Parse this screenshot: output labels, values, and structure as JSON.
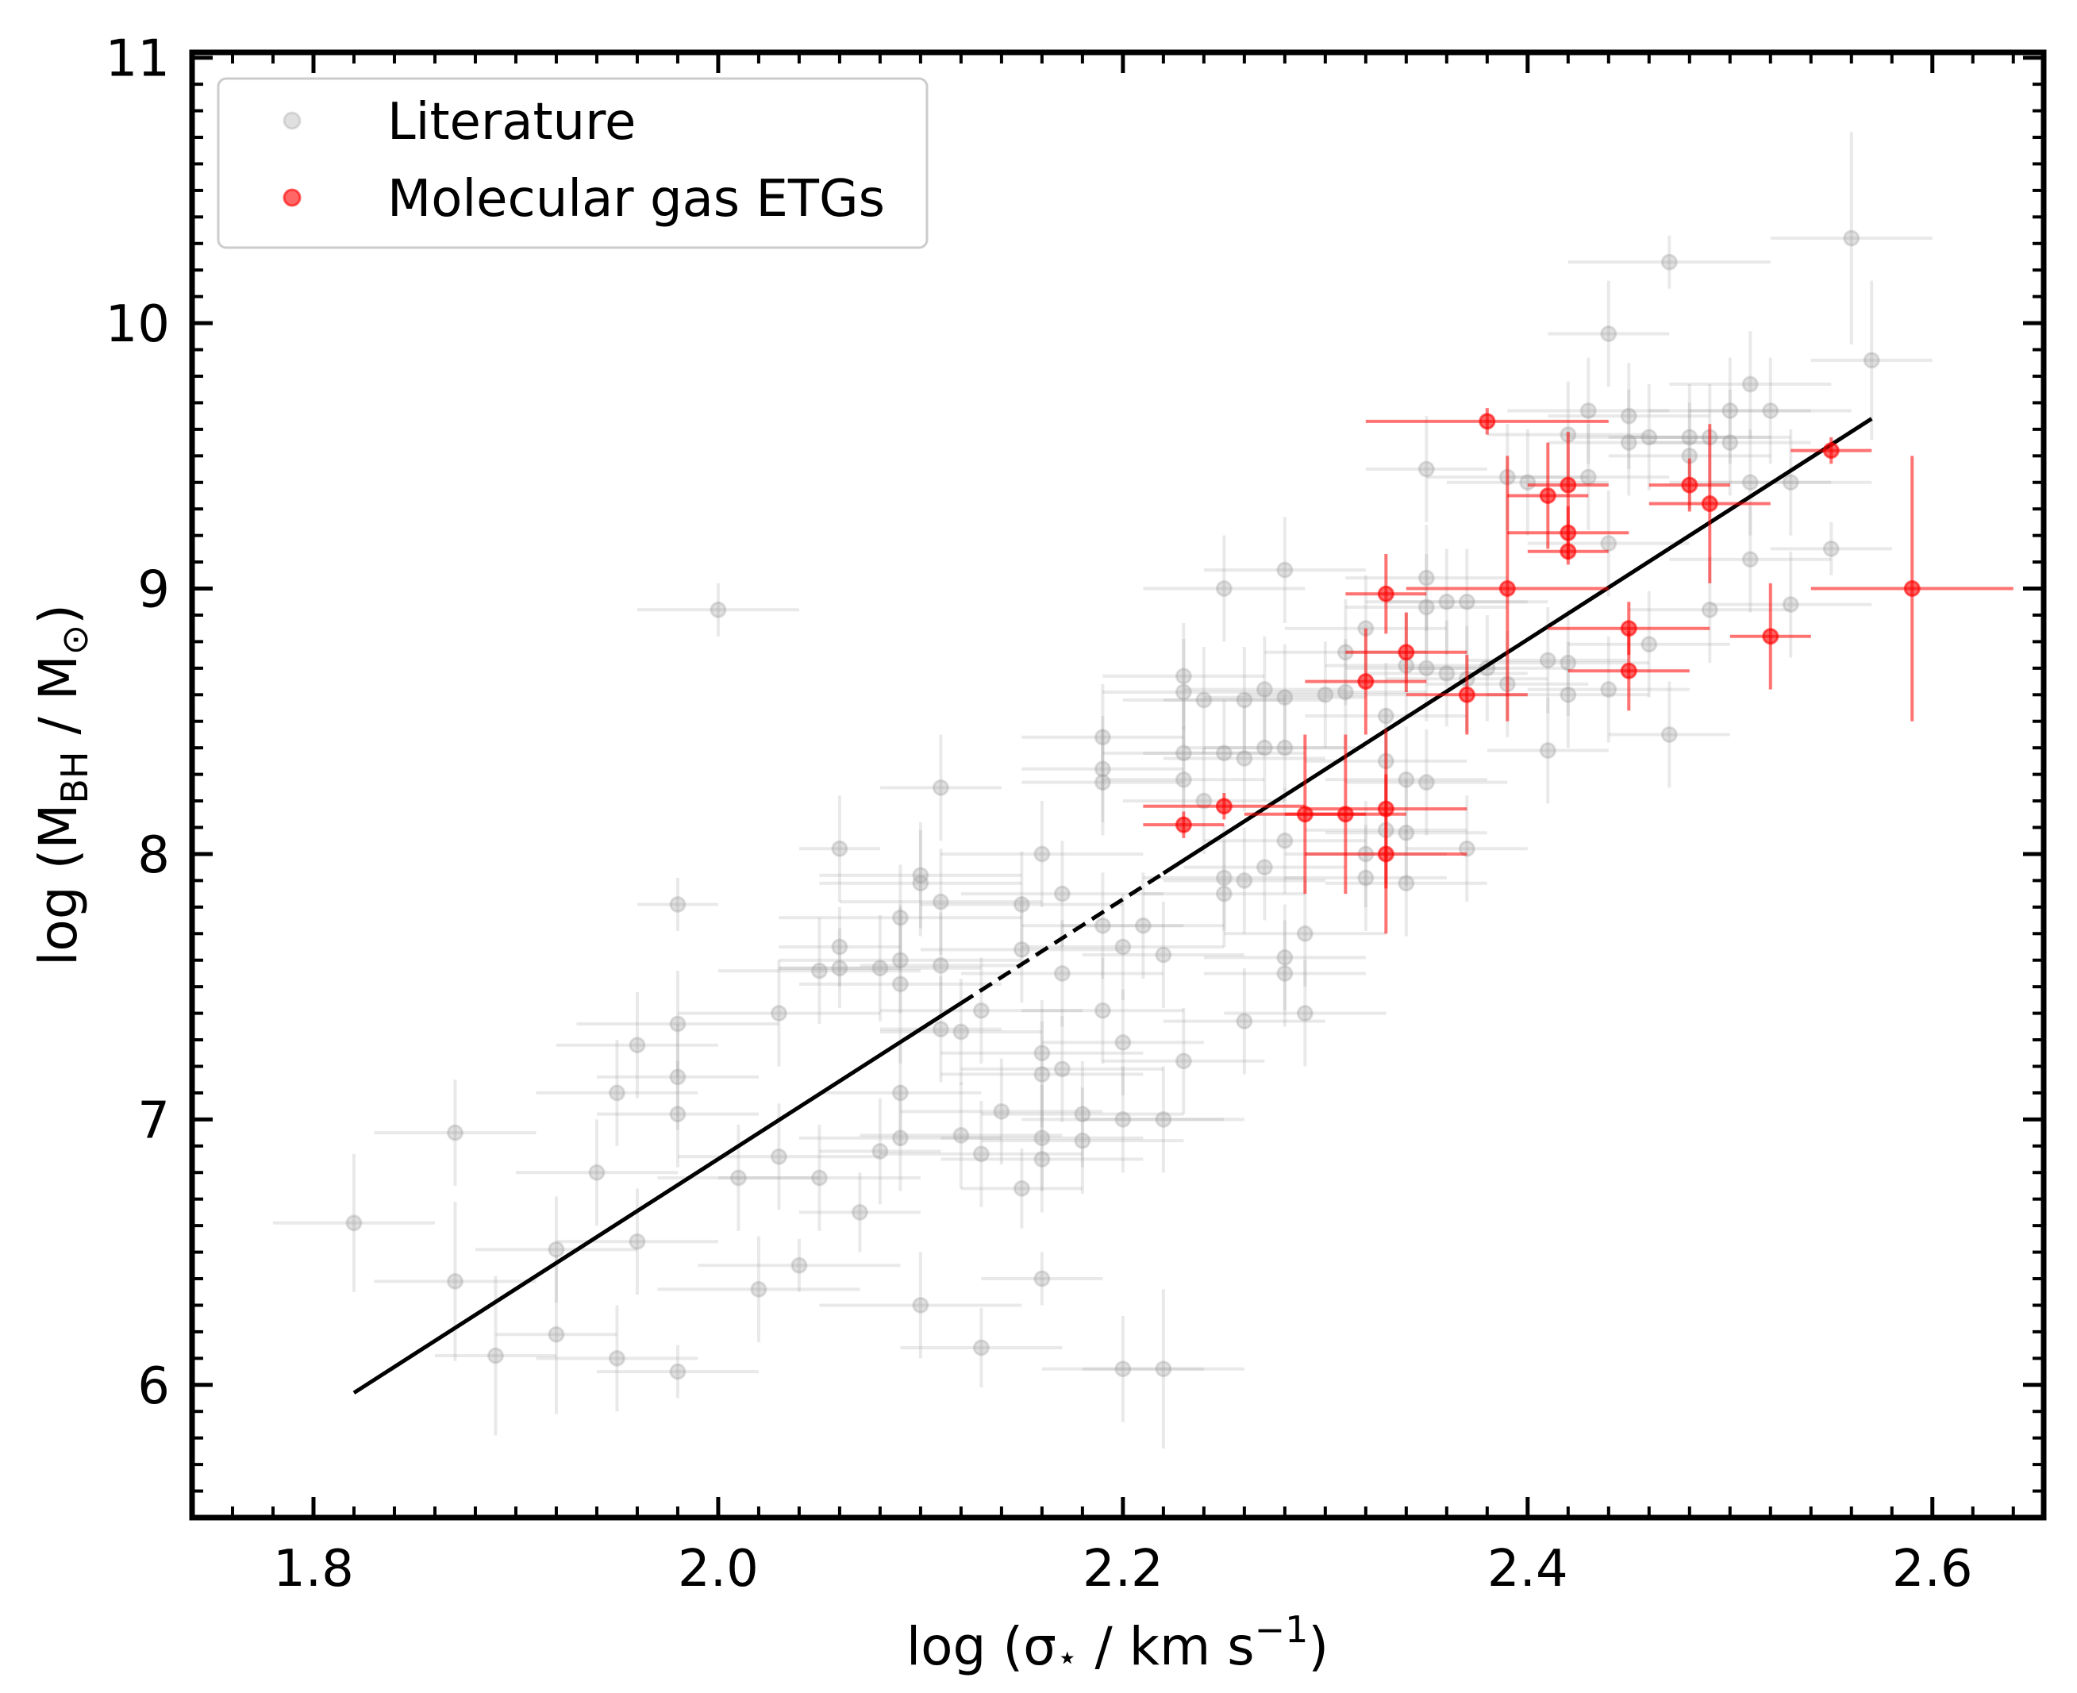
{
  "chart_data": {
    "type": "scatter",
    "xlabel": "log (σ⋆ / km s⁻¹)",
    "ylabel": "log (M_BH / M_⊙)",
    "xlabel_parts": {
      "main": "log (σ",
      "star": "⋆",
      "mid": " / km s",
      "sup": "−1",
      "end": ")"
    },
    "ylabel_parts": {
      "main": "log (M",
      "sub1": "BH",
      "mid": " / M",
      "sub2": "⊙",
      "end": ")"
    },
    "xlim": [
      1.74,
      2.655
    ],
    "ylim": [
      5.5,
      11.02
    ],
    "xticks": [
      "1.8",
      "2.0",
      "2.2",
      "2.4",
      "2.6"
    ],
    "yticks": [
      "6",
      "7",
      "8",
      "9",
      "10",
      "11"
    ],
    "legend_position": "top-left",
    "colors": {
      "literature": "#999999",
      "molecular": "#ff0000",
      "fit": "#000000"
    },
    "fit_line": {
      "x": [
        1.82,
        2.57
      ],
      "y": [
        5.97,
        9.64
      ],
      "dashed_range": [
        2.12,
        2.22
      ]
    },
    "series": [
      {
        "name": "Literature",
        "points": [
          [
            1.82,
            6.61,
            0.04,
            0.26
          ],
          [
            1.87,
            6.95,
            0.04,
            0.2
          ],
          [
            1.87,
            6.39,
            0.04,
            0.3
          ],
          [
            1.89,
            6.11,
            0.03,
            0.3
          ],
          [
            1.92,
            6.51,
            0.04,
            0.2
          ],
          [
            1.92,
            6.19,
            0.03,
            0.3
          ],
          [
            1.94,
            6.8,
            0.04,
            0.2
          ],
          [
            1.95,
            7.1,
            0.04,
            0.2
          ],
          [
            1.95,
            6.1,
            0.04,
            0.2
          ],
          [
            1.96,
            7.28,
            0.04,
            0.2
          ],
          [
            1.96,
            6.54,
            0.04,
            0.2
          ],
          [
            1.98,
            7.36,
            0.05,
            0.2
          ],
          [
            1.98,
            7.16,
            0.04,
            0.2
          ],
          [
            1.98,
            7.02,
            0.04,
            0.2
          ],
          [
            1.98,
            7.81,
            0.02,
            0.1
          ],
          [
            1.98,
            6.05,
            0.04,
            0.1
          ],
          [
            2.0,
            8.92,
            0.04,
            0.1
          ],
          [
            2.01,
            6.78,
            0.04,
            0.2
          ],
          [
            2.02,
            6.36,
            0.05,
            0.2
          ],
          [
            2.03,
            7.4,
            0.05,
            0.2
          ],
          [
            2.03,
            6.86,
            0.05,
            0.2
          ],
          [
            2.04,
            6.45,
            0.05,
            0.1
          ],
          [
            2.05,
            7.56,
            0.05,
            0.2
          ],
          [
            2.05,
            6.78,
            0.05,
            0.2
          ],
          [
            2.06,
            8.02,
            0.02,
            0.2
          ],
          [
            2.06,
            7.65,
            0.03,
            0.15
          ],
          [
            2.06,
            7.57,
            0.03,
            0.15
          ],
          [
            2.07,
            6.65,
            0.03,
            0.15
          ],
          [
            2.08,
            7.57,
            0.05,
            0.2
          ],
          [
            2.08,
            6.88,
            0.03,
            0.2
          ],
          [
            2.09,
            7.76,
            0.06,
            0.2
          ],
          [
            2.09,
            7.6,
            0.06,
            0.2
          ],
          [
            2.09,
            7.51,
            0.05,
            0.3
          ],
          [
            2.09,
            7.1,
            0.04,
            0.2
          ],
          [
            2.09,
            6.93,
            0.05,
            0.2
          ],
          [
            2.1,
            7.92,
            0.05,
            0.2
          ],
          [
            2.1,
            7.89,
            0.05,
            0.2
          ],
          [
            2.1,
            6.3,
            0.05,
            0.2
          ],
          [
            2.11,
            8.25,
            0.03,
            0.2
          ],
          [
            2.11,
            7.82,
            0.05,
            0.2
          ],
          [
            2.11,
            7.58,
            0.04,
            0.2
          ],
          [
            2.11,
            7.34,
            0.03,
            0.2
          ],
          [
            2.12,
            7.33,
            0.04,
            0.2
          ],
          [
            2.12,
            6.94,
            0.05,
            0.2
          ],
          [
            2.13,
            7.41,
            0.05,
            0.2
          ],
          [
            2.13,
            6.87,
            0.05,
            0.2
          ],
          [
            2.13,
            6.14,
            0.04,
            0.15
          ],
          [
            2.14,
            7.03,
            0.05,
            0.2
          ],
          [
            2.15,
            7.81,
            0.05,
            0.2
          ],
          [
            2.15,
            7.64,
            0.05,
            0.2
          ],
          [
            2.15,
            6.74,
            0.03,
            0.15
          ],
          [
            2.16,
            8.0,
            0.05,
            0.2
          ],
          [
            2.16,
            7.25,
            0.05,
            0.2
          ],
          [
            2.16,
            7.17,
            0.05,
            0.2
          ],
          [
            2.16,
            6.93,
            0.05,
            0.2
          ],
          [
            2.16,
            6.85,
            0.05,
            0.2
          ],
          [
            2.16,
            6.4,
            0.03,
            0.1
          ],
          [
            2.17,
            7.85,
            0.05,
            0.2
          ],
          [
            2.17,
            7.55,
            0.05,
            0.2
          ],
          [
            2.17,
            7.19,
            0.05,
            0.2
          ],
          [
            2.18,
            7.02,
            0.05,
            0.2
          ],
          [
            2.18,
            6.92,
            0.05,
            0.2
          ],
          [
            2.19,
            8.44,
            0.04,
            0.2
          ],
          [
            2.19,
            8.32,
            0.04,
            0.2
          ],
          [
            2.19,
            8.27,
            0.04,
            0.2
          ],
          [
            2.19,
            7.73,
            0.04,
            0.2
          ],
          [
            2.19,
            7.41,
            0.04,
            0.2
          ],
          [
            2.2,
            7.65,
            0.05,
            0.2
          ],
          [
            2.2,
            7.29,
            0.04,
            0.2
          ],
          [
            2.2,
            7.0,
            0.05,
            0.2
          ],
          [
            2.2,
            6.06,
            0.04,
            0.2
          ],
          [
            2.21,
            7.73,
            0.04,
            0.2
          ],
          [
            2.22,
            7.62,
            0.04,
            0.2
          ],
          [
            2.22,
            7.0,
            0.04,
            0.2
          ],
          [
            2.22,
            6.06,
            0.04,
            0.3
          ],
          [
            2.23,
            8.67,
            0.04,
            0.2
          ],
          [
            2.23,
            8.61,
            0.04,
            0.2
          ],
          [
            2.23,
            8.38,
            0.04,
            0.2
          ],
          [
            2.23,
            8.28,
            0.04,
            0.2
          ],
          [
            2.23,
            7.22,
            0.04,
            0.2
          ],
          [
            2.24,
            8.58,
            0.04,
            0.2
          ],
          [
            2.24,
            8.2,
            0.04,
            0.2
          ],
          [
            2.25,
            9.0,
            0.04,
            0.2
          ],
          [
            2.25,
            8.38,
            0.04,
            0.2
          ],
          [
            2.25,
            7.91,
            0.04,
            0.2
          ],
          [
            2.25,
            7.85,
            0.04,
            0.2
          ],
          [
            2.26,
            8.58,
            0.04,
            0.2
          ],
          [
            2.26,
            8.36,
            0.04,
            0.2
          ],
          [
            2.26,
            7.9,
            0.04,
            0.2
          ],
          [
            2.26,
            7.37,
            0.04,
            0.2
          ],
          [
            2.27,
            8.62,
            0.04,
            0.2
          ],
          [
            2.27,
            8.4,
            0.04,
            0.2
          ],
          [
            2.27,
            7.95,
            0.04,
            0.2
          ],
          [
            2.28,
            9.07,
            0.04,
            0.2
          ],
          [
            2.28,
            8.59,
            0.04,
            0.2
          ],
          [
            2.28,
            8.4,
            0.04,
            0.2
          ],
          [
            2.28,
            8.05,
            0.04,
            0.2
          ],
          [
            2.28,
            7.61,
            0.04,
            0.2
          ],
          [
            2.28,
            7.55,
            0.04,
            0.2
          ],
          [
            2.29,
            7.7,
            0.04,
            0.2
          ],
          [
            2.29,
            7.4,
            0.04,
            0.2
          ],
          [
            2.3,
            8.6,
            0.04,
            0.2
          ],
          [
            2.31,
            8.76,
            0.04,
            0.2
          ],
          [
            2.31,
            8.61,
            0.04,
            0.2
          ],
          [
            2.32,
            8.85,
            0.04,
            0.2
          ],
          [
            2.32,
            8.0,
            0.04,
            0.2
          ],
          [
            2.32,
            7.91,
            0.04,
            0.2
          ],
          [
            2.33,
            8.52,
            0.04,
            0.2
          ],
          [
            2.33,
            8.35,
            0.04,
            0.2
          ],
          [
            2.33,
            8.09,
            0.04,
            0.2
          ],
          [
            2.34,
            8.71,
            0.04,
            0.2
          ],
          [
            2.34,
            8.28,
            0.04,
            0.2
          ],
          [
            2.34,
            8.08,
            0.04,
            0.2
          ],
          [
            2.34,
            7.89,
            0.04,
            0.2
          ],
          [
            2.35,
            9.45,
            0.03,
            0.2
          ],
          [
            2.35,
            9.04,
            0.04,
            0.2
          ],
          [
            2.35,
            8.93,
            0.04,
            0.2
          ],
          [
            2.35,
            8.7,
            0.04,
            0.2
          ],
          [
            2.35,
            8.27,
            0.04,
            0.2
          ],
          [
            2.36,
            8.95,
            0.04,
            0.2
          ],
          [
            2.36,
            8.68,
            0.04,
            0.2
          ],
          [
            2.37,
            8.95,
            0.04,
            0.2
          ],
          [
            2.37,
            8.66,
            0.04,
            0.2
          ],
          [
            2.37,
            8.02,
            0.03,
            0.2
          ],
          [
            2.38,
            8.7,
            0.04,
            0.2
          ],
          [
            2.39,
            9.42,
            0.04,
            0.2
          ],
          [
            2.39,
            8.64,
            0.04,
            0.2
          ],
          [
            2.4,
            9.4,
            0.04,
            0.2
          ],
          [
            2.41,
            8.73,
            0.04,
            0.2
          ],
          [
            2.41,
            8.39,
            0.03,
            0.2
          ],
          [
            2.42,
            9.58,
            0.04,
            0.2
          ],
          [
            2.42,
            8.72,
            0.04,
            0.2
          ],
          [
            2.42,
            8.6,
            0.04,
            0.2
          ],
          [
            2.43,
            9.67,
            0.04,
            0.2
          ],
          [
            2.43,
            9.42,
            0.04,
            0.2
          ],
          [
            2.44,
            9.96,
            0.03,
            0.2
          ],
          [
            2.44,
            9.17,
            0.04,
            0.2
          ],
          [
            2.44,
            8.62,
            0.04,
            0.2
          ],
          [
            2.45,
            9.65,
            0.04,
            0.2
          ],
          [
            2.45,
            9.55,
            0.04,
            0.2
          ],
          [
            2.46,
            9.57,
            0.04,
            0.2
          ],
          [
            2.46,
            8.79,
            0.04,
            0.2
          ],
          [
            2.47,
            10.23,
            0.05,
            0.1
          ],
          [
            2.47,
            8.45,
            0.03,
            0.2
          ],
          [
            2.48,
            9.57,
            0.04,
            0.2
          ],
          [
            2.48,
            9.5,
            0.04,
            0.2
          ],
          [
            2.49,
            9.57,
            0.04,
            0.2
          ],
          [
            2.49,
            8.92,
            0.04,
            0.2
          ],
          [
            2.5,
            9.67,
            0.04,
            0.2
          ],
          [
            2.5,
            9.55,
            0.04,
            0.2
          ],
          [
            2.51,
            9.77,
            0.04,
            0.2
          ],
          [
            2.51,
            9.4,
            0.04,
            0.2
          ],
          [
            2.51,
            9.11,
            0.04,
            0.2
          ],
          [
            2.52,
            9.67,
            0.04,
            0.2
          ],
          [
            2.53,
            9.4,
            0.04,
            0.2
          ],
          [
            2.53,
            8.94,
            0.04,
            0.2
          ],
          [
            2.55,
            9.15,
            0.03,
            0.1
          ],
          [
            2.56,
            10.32,
            0.04,
            0.4
          ],
          [
            2.57,
            9.86,
            0.03,
            0.3
          ]
        ]
      },
      {
        "name": "Molecular gas ETGs",
        "points": [
          [
            2.23,
            8.11,
            0.02,
            0.05
          ],
          [
            2.25,
            8.18,
            0.04,
            0.05
          ],
          [
            2.29,
            8.15,
            0.03,
            0.3
          ],
          [
            2.31,
            8.15,
            0.03,
            0.3
          ],
          [
            2.32,
            8.65,
            0.03,
            0.2
          ],
          [
            2.33,
            8.98,
            0.02,
            0.15
          ],
          [
            2.33,
            8.17,
            0.04,
            0.3
          ],
          [
            2.33,
            8.0,
            0.04,
            0.3
          ],
          [
            2.34,
            8.76,
            0.03,
            0.15
          ],
          [
            2.37,
            8.6,
            0.03,
            0.15
          ],
          [
            2.38,
            9.63,
            0.06,
            0.05
          ],
          [
            2.39,
            9.0,
            0.05,
            0.5
          ],
          [
            2.41,
            9.35,
            0.02,
            0.2
          ],
          [
            2.42,
            9.39,
            0.02,
            0.2
          ],
          [
            2.42,
            9.21,
            0.03,
            0.1
          ],
          [
            2.42,
            9.14,
            0.02,
            0.05
          ],
          [
            2.45,
            8.85,
            0.04,
            0.1
          ],
          [
            2.45,
            8.69,
            0.03,
            0.15
          ],
          [
            2.48,
            9.39,
            0.02,
            0.1
          ],
          [
            2.49,
            9.32,
            0.03,
            0.3
          ],
          [
            2.52,
            8.82,
            0.02,
            0.2
          ],
          [
            2.55,
            9.52,
            0.02,
            0.05
          ],
          [
            2.59,
            9.0,
            0.05,
            0.5
          ]
        ]
      }
    ]
  },
  "legend": {
    "items": [
      {
        "label": "Literature",
        "color": "#999999"
      },
      {
        "label": "Molecular gas ETGs",
        "color": "#ff0000"
      }
    ]
  }
}
